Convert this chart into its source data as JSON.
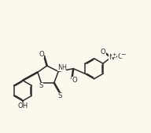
{
  "bg_color": "#fcf8ee",
  "line_color": "#2a2a2a",
  "line_width": 1.1,
  "font_size": 6.2,
  "fig_width": 1.92,
  "fig_height": 1.7,
  "dpi": 100,
  "xlim": [
    0.0,
    10.5
  ],
  "ylim": [
    1.5,
    9.5
  ]
}
